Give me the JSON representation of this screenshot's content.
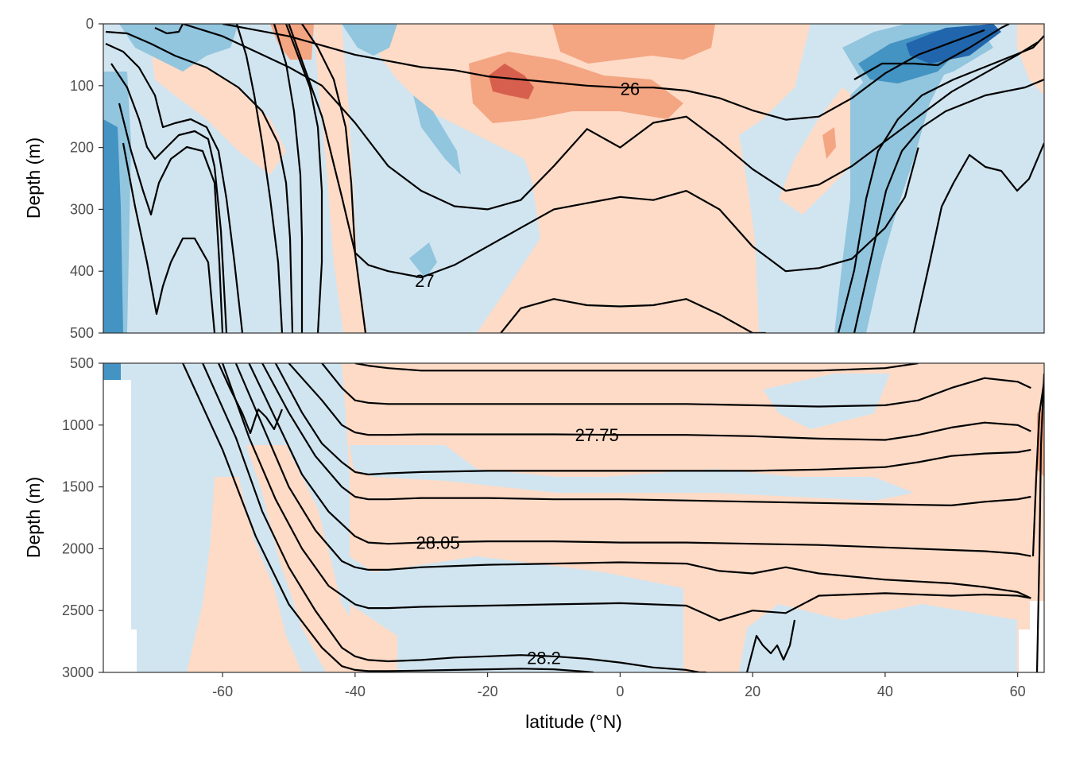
{
  "chart_data": {
    "type": "contour",
    "xlabel": "latitude (°N)",
    "x_ticks": [
      -60,
      -40,
      -20,
      0,
      20,
      40,
      60
    ],
    "xlim": [
      -78,
      64
    ],
    "colors": {
      "blue_strong": "#2166ac",
      "blue_mid": "#4393c3",
      "blue_light": "#92c5de",
      "blue_pale": "#d1e5f0",
      "red_pale": "#fddbc7",
      "red_light": "#f4a582",
      "red_strong": "#d6604d"
    },
    "panels": [
      {
        "name": "upper",
        "ylabel": "Depth (m)",
        "ylim": [
          0,
          500
        ],
        "y_ticks": [
          0,
          100,
          200,
          300,
          400,
          500
        ],
        "contour_labels": [
          {
            "text": "26",
            "lat": 1.5,
            "depth": 105
          },
          {
            "text": "27",
            "lat": -29.5,
            "depth": 415
          }
        ],
        "isopycnals": [
          {
            "lat": [
              -60,
              -55,
              -50,
              -45,
              -40,
              -35,
              -30,
              -25,
              -20,
              -15,
              -10,
              -5,
              0,
              5,
              10,
              15,
              20,
              25,
              30,
              35,
              40,
              45,
              50,
              55
            ],
            "depth": [
              0,
              10,
              20,
              35,
              50,
              60,
              70,
              75,
              85,
              90,
              95,
              100,
              103,
              103,
              108,
              120,
              140,
              155,
              150,
              120,
              80,
              50,
              30,
              10
            ]
          },
          {
            "lat": [
              -66,
              -60,
              -55,
              -50,
              -45,
              -40,
              -35,
              -30,
              -25,
              -20,
              -15,
              -10,
              -5,
              0,
              5,
              10,
              15,
              20,
              25,
              30,
              35,
              40,
              45,
              50,
              55,
              60,
              63
            ],
            "depth": [
              0,
              20,
              45,
              70,
              100,
              160,
              230,
              270,
              295,
              300,
              285,
              230,
              170,
              200,
              160,
              150,
              190,
              235,
              270,
              260,
              230,
              190,
              150,
              110,
              80,
              50,
              30
            ]
          },
          {
            "lat": [
              -50,
              -48,
              -45,
              -42,
              -40,
              -38,
              -35,
              -30,
              -25,
              -20,
              -15,
              -10,
              -5,
              0,
              5,
              10,
              15,
              20,
              25,
              30,
              35,
              40,
              43,
              45
            ],
            "depth": [
              0,
              60,
              150,
              280,
              370,
              390,
              400,
              410,
              390,
              360,
              330,
              300,
              290,
              280,
              285,
              270,
              300,
              360,
              400,
              395,
              380,
              330,
              280,
              200
            ]
          },
          {
            "lat": [
              -18,
              -15,
              -10,
              -5,
              0,
              5,
              10,
              15,
              20,
              22
            ],
            "depth": [
              500,
              460,
              445,
              455,
              457,
              455,
              445,
              470,
              500,
              500
            ]
          }
        ]
      },
      {
        "name": "lower",
        "ylabel": "Depth (m)",
        "ylim": [
          500,
          3000
        ],
        "y_ticks": [
          500,
          1000,
          1500,
          2000,
          2500,
          3000
        ],
        "contour_labels": [
          {
            "text": "27.75",
            "lat": -3.5,
            "depth": 1080
          },
          {
            "text": "28.05",
            "lat": -27.5,
            "depth": 1950
          },
          {
            "text": "28.2",
            "lat": -11.5,
            "depth": 2880
          }
        ],
        "isopycnals": [
          {
            "lat": [
              -40,
              -38,
              -35,
              -30,
              -20,
              -10,
              0,
              10,
              20,
              30,
              40,
              45
            ],
            "depth": [
              500,
              520,
              540,
              560,
              560,
              560,
              560,
              560,
              560,
              560,
              540,
              500
            ]
          },
          {
            "lat": [
              -45,
              -42,
              -40,
              -38,
              -35,
              -30,
              -20,
              -10,
              0,
              10,
              20,
              30,
              40,
              45,
              50,
              55,
              60,
              62
            ],
            "depth": [
              500,
              700,
              800,
              820,
              830,
              830,
              830,
              830,
              830,
              830,
              840,
              850,
              840,
              800,
              700,
              620,
              650,
              700
            ]
          },
          {
            "lat": [
              -50,
              -45,
              -42,
              -40,
              -38,
              -35,
              -30,
              -20,
              -10,
              0,
              10,
              20,
              30,
              40,
              45,
              50,
              55,
              60,
              62
            ],
            "depth": [
              500,
              800,
              1000,
              1060,
              1080,
              1080,
              1075,
              1075,
              1075,
              1080,
              1080,
              1090,
              1110,
              1120,
              1080,
              1020,
              980,
              1000,
              1050
            ]
          },
          {
            "lat": [
              -52,
              -48,
              -45,
              -42,
              -40,
              -38,
              -35,
              -30,
              -20,
              -10,
              0,
              10,
              20,
              30,
              40,
              45,
              50,
              55,
              60,
              62
            ],
            "depth": [
              500,
              900,
              1150,
              1300,
              1380,
              1400,
              1390,
              1380,
              1370,
              1370,
              1370,
              1370,
              1370,
              1360,
              1340,
              1300,
              1250,
              1230,
              1220,
              1200
            ]
          },
          {
            "lat": [
              -54,
              -50,
              -46,
              -42,
              -40,
              -38,
              -35,
              -30,
              -20,
              -10,
              0,
              10,
              20,
              30,
              40,
              50,
              55,
              60,
              62
            ],
            "depth": [
              500,
              900,
              1250,
              1500,
              1580,
              1600,
              1600,
              1590,
              1590,
              1600,
              1600,
              1610,
              1620,
              1630,
              1640,
              1650,
              1620,
              1600,
              1580
            ]
          },
          {
            "lat": [
              -56,
              -52,
              -48,
              -44,
              -40,
              -38,
              -35,
              -30,
              -20,
              -10,
              0,
              10,
              20,
              30,
              40,
              50,
              55,
              60,
              62
            ],
            "depth": [
              500,
              950,
              1400,
              1700,
              1900,
              1950,
              1960,
              1950,
              1940,
              1940,
              1950,
              1950,
              1960,
              1970,
              1990,
              2010,
              2020,
              2040,
              2060
            ]
          },
          {
            "lat": [
              -58,
              -54,
              -50,
              -46,
              -42,
              -40,
              -38,
              -35,
              -30,
              -20,
              -10,
              0,
              10,
              15,
              20,
              25,
              30,
              40,
              50,
              55,
              60,
              62
            ],
            "depth": [
              500,
              1000,
              1500,
              1850,
              2100,
              2150,
              2170,
              2170,
              2150,
              2130,
              2120,
              2110,
              2120,
              2180,
              2200,
              2150,
              2200,
              2250,
              2280,
              2310,
              2350,
              2400
            ]
          },
          {
            "lat": [
              -60,
              -56,
              -52,
              -48,
              -44,
              -40,
              -38,
              -35,
              -30,
              -20,
              -10,
              0,
              10,
              15,
              20,
              25,
              30,
              40,
              50,
              55,
              60,
              62
            ],
            "depth": [
              500,
              1100,
              1600,
              2000,
              2300,
              2450,
              2480,
              2480,
              2470,
              2460,
              2450,
              2440,
              2460,
              2580,
              2500,
              2520,
              2380,
              2360,
              2380,
              2370,
              2380,
              2400
            ]
          },
          {
            "lat": [
              -63,
              -58,
              -54,
              -50,
              -46,
              -42,
              -40,
              -38,
              -35,
              -30,
              -25,
              -20,
              -15,
              -10,
              -5,
              0,
              5,
              10,
              12,
              13
            ],
            "depth": [
              500,
              1100,
              1700,
              2150,
              2500,
              2800,
              2870,
              2900,
              2910,
              2900,
              2880,
              2870,
              2860,
              2870,
              2890,
              2920,
              2960,
              2980,
              3000,
              3000
            ]
          },
          {
            "lat": [
              -66,
              -60,
              -55,
              -50,
              -45,
              -42,
              -40,
              -38,
              -35,
              -30,
              -25,
              -20,
              -15,
              -10,
              -5,
              -4
            ],
            "depth": [
              500,
              1200,
              1900,
              2450,
              2800,
              2950,
              2980,
              2990,
              2990,
              2985,
              2980,
              2975,
              2970,
              2975,
              2995,
              3000
            ]
          }
        ]
      }
    ]
  }
}
